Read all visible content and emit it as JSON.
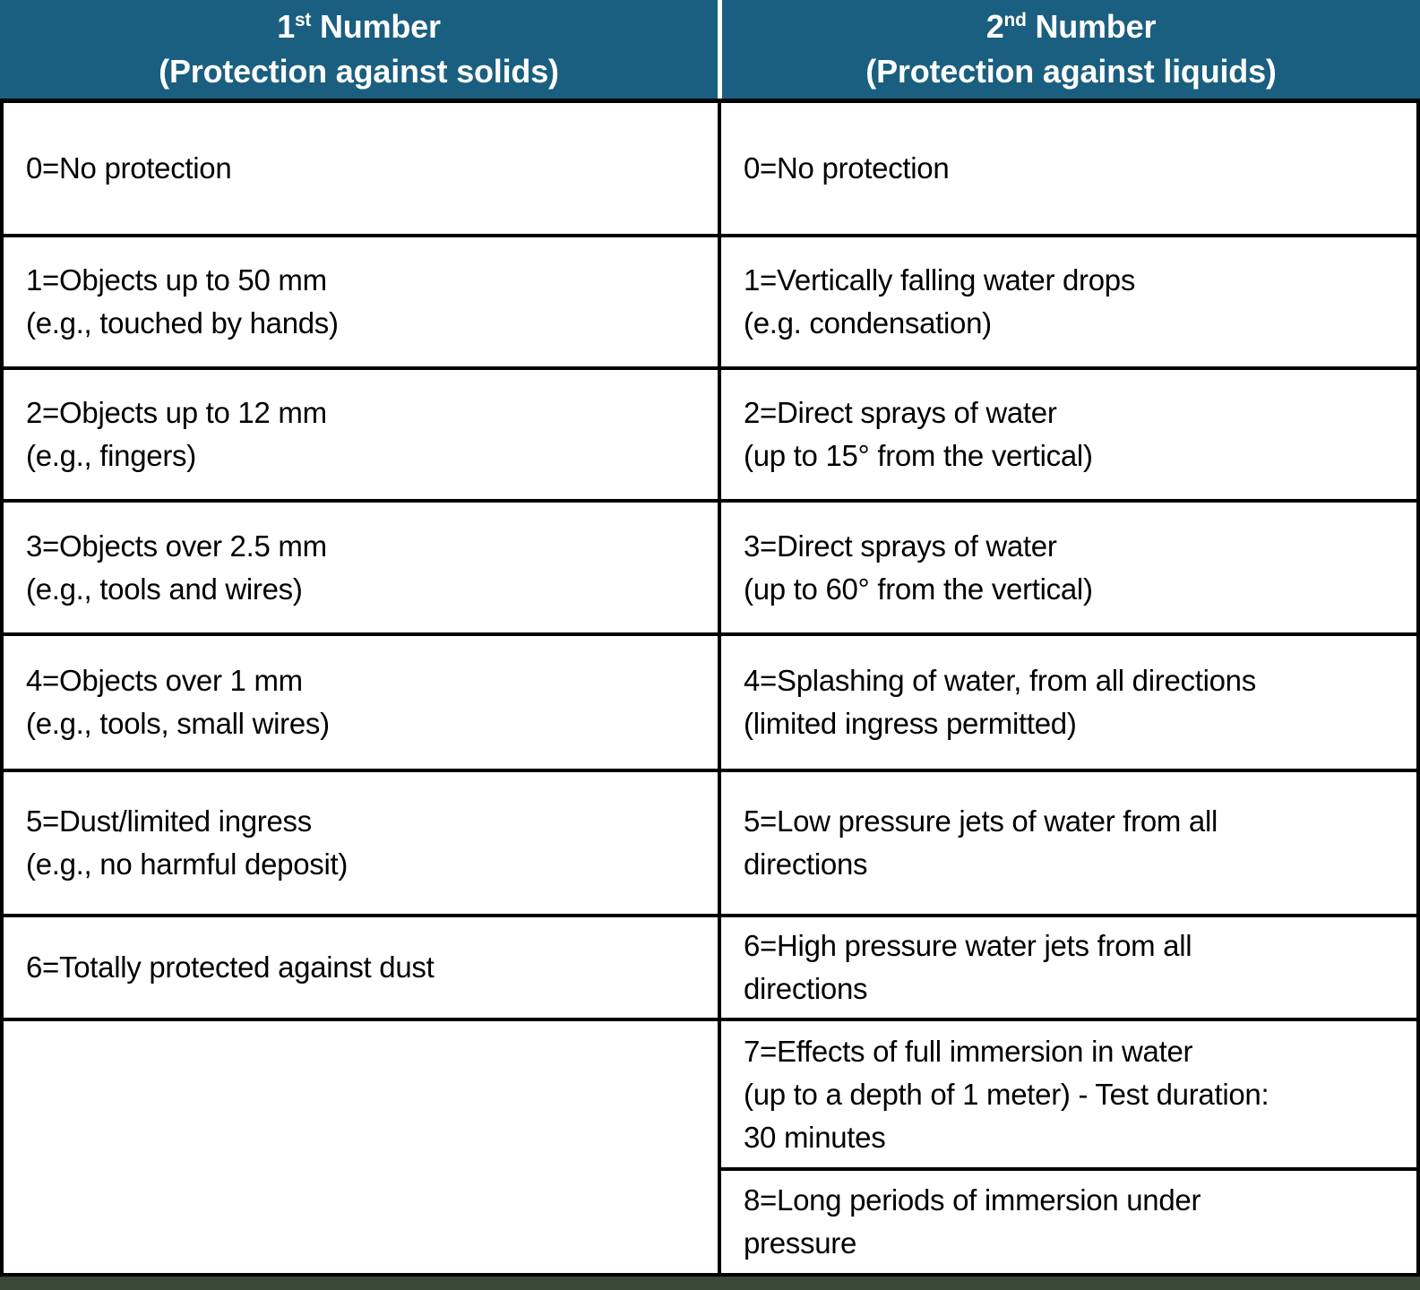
{
  "colors": {
    "header_bg": "#1A5F7F",
    "header_text": "#FFFFFF",
    "body_bg": "#FFFFFF",
    "body_text": "#000000",
    "border": "#000000",
    "bottom_bar": "#3A4836"
  },
  "header": {
    "col1": {
      "num": "1",
      "ord": "st",
      "rest": " Number",
      "subtitle": "(Protection against solids)"
    },
    "col2": {
      "num": "2",
      "ord": "nd",
      "rest": " Number",
      "subtitle": "(Protection against liquids)"
    }
  },
  "solids": {
    "r0": {
      "l1": "0=No protection"
    },
    "r1": {
      "l1": "1=Objects up to 50 mm",
      "l2": "(e.g., touched by hands)"
    },
    "r2": {
      "l1": "2=Objects up to 12 mm",
      "l2": "(e.g., fingers)"
    },
    "r3": {
      "l1": "3=Objects over 2.5 mm",
      "l2": "(e.g., tools and wires)"
    },
    "r4": {
      "l1": "4=Objects over 1 mm",
      "l2": "(e.g., tools, small wires)"
    },
    "r5": {
      "l1": "5=Dust/limited ingress",
      "l2": "(e.g., no harmful deposit)"
    },
    "r6": {
      "l1": "6=Totally protected against dust"
    },
    "r7": {
      "l1": ""
    }
  },
  "liquids": {
    "r0": {
      "l1": "0=No protection"
    },
    "r1": {
      "l1": "1=Vertically falling water drops",
      "l2": "(e.g. condensation)"
    },
    "r2": {
      "l1": "2=Direct sprays of water",
      "l2": "(up to 15° from the vertical)"
    },
    "r3": {
      "l1": "3=Direct sprays of water",
      "l2": "(up to 60° from the vertical)"
    },
    "r4": {
      "l1": "4=Splashing of water, from all directions",
      "l2": "(limited ingress permitted)"
    },
    "r5": {
      "l1": "5=Low pressure jets of water from all",
      "l2": "directions"
    },
    "r6": {
      "l1": "6=High pressure water jets from all",
      "l2": "directions"
    },
    "r7": {
      "l1": "7=Effects of full immersion in water",
      "l2": "(up to a depth of 1 meter) - Test duration:",
      "l3": "30 minutes"
    },
    "r8": {
      "l1": "8=Long periods of immersion under",
      "l2": "pressure"
    }
  }
}
